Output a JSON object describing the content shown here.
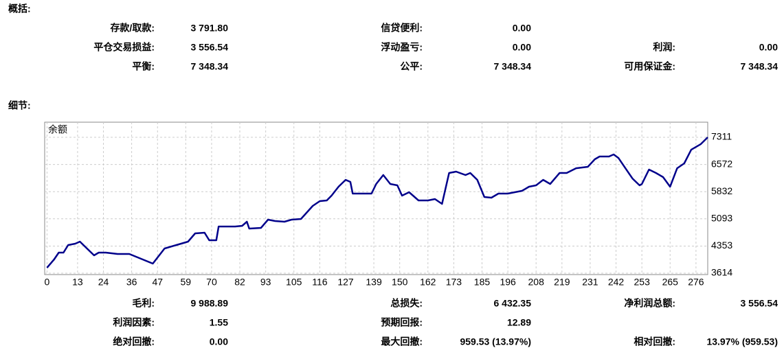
{
  "summary": {
    "title": "概括:",
    "rows": [
      [
        {
          "label": "存款/取款:",
          "value": "3 791.80"
        },
        {
          "label": "信贷便利:",
          "value": "0.00"
        }
      ],
      [
        {
          "label": "平仓交易损益:",
          "value": "3 556.54"
        },
        {
          "label": "浮动盈亏:",
          "value": "0.00"
        },
        {
          "label": "利润:",
          "value": "0.00"
        }
      ],
      [
        {
          "label": "平衡:",
          "value": "7 348.34"
        },
        {
          "label": "公平:",
          "value": "7 348.34"
        },
        {
          "label": "可用保证金:",
          "value": "7 348.34"
        }
      ]
    ]
  },
  "details": {
    "title": "细节:",
    "rows": [
      [
        {
          "label": "毛利:",
          "value": "9 988.89"
        },
        {
          "label": "总损失:",
          "value": "6 432.35"
        },
        {
          "label": "净利润总额:",
          "value": "3 556.54"
        }
      ],
      [
        {
          "label": "利润因素:",
          "value": "1.55"
        },
        {
          "label": "预期回报:",
          "value": "12.89"
        }
      ],
      [
        {
          "label": "绝对回撤:",
          "value": "0.00"
        },
        {
          "label": "最大回撤:",
          "value": "959.53 (13.97%)"
        },
        {
          "label": "相对回撤:",
          "value": "13.97% (959.53)"
        }
      ]
    ]
  },
  "chart_data": {
    "type": "line",
    "title": "余额",
    "color": "#00008b",
    "grid": true,
    "x": [
      0,
      3,
      5,
      7,
      9,
      12,
      14,
      17,
      20,
      22,
      25,
      30,
      35,
      40,
      45,
      50,
      55,
      57,
      60,
      63,
      67,
      69,
      72,
      73,
      80,
      83,
      85,
      86,
      91,
      94,
      97,
      101,
      104,
      108,
      113,
      116,
      119,
      121,
      124,
      127,
      129,
      130,
      135,
      138,
      140,
      143,
      146,
      149,
      151,
      154,
      158,
      162,
      165,
      168,
      171,
      174,
      178,
      180,
      183,
      186,
      189,
      192,
      196,
      202,
      205,
      208,
      211,
      214,
      218,
      221,
      225,
      230,
      233,
      235,
      239,
      241,
      243,
      246,
      249,
      252,
      253,
      256,
      259,
      262,
      265,
      268,
      271,
      274,
      277,
      278,
      281
    ],
    "values": [
      3763,
      3987,
      4174,
      4174,
      4380,
      4417,
      4473,
      4286,
      4099,
      4174,
      4174,
      4137,
      4137,
      4006,
      3875,
      4286,
      4380,
      4417,
      4473,
      4697,
      4716,
      4510,
      4510,
      4884,
      4884,
      4903,
      5015,
      4828,
      4847,
      5070,
      5033,
      5015,
      5070,
      5089,
      5444,
      5574,
      5593,
      5724,
      5966,
      6153,
      6097,
      5780,
      5780,
      5780,
      6041,
      6284,
      6041,
      6004,
      5724,
      5817,
      5593,
      5593,
      5630,
      5500,
      6340,
      6377,
      6284,
      6340,
      6153,
      5686,
      5668,
      5780,
      5780,
      5854,
      5966,
      6004,
      6153,
      6041,
      6340,
      6340,
      6470,
      6508,
      6713,
      6788,
      6788,
      6844,
      6750,
      6470,
      6190,
      6004,
      6041,
      6433,
      6340,
      6228,
      5966,
      6470,
      6601,
      6974,
      7086,
      7123,
      7311
    ],
    "xlim": [
      -1,
      281
    ],
    "ylim": [
      3577,
      7722
    ],
    "xticks": [
      0,
      13,
      24,
      36,
      47,
      59,
      70,
      82,
      93,
      105,
      116,
      127,
      139,
      150,
      162,
      173,
      185,
      196,
      208,
      219,
      231,
      242,
      253,
      265,
      276
    ],
    "yticks": [
      3614,
      4353,
      5093,
      5832,
      6572,
      7311
    ]
  }
}
